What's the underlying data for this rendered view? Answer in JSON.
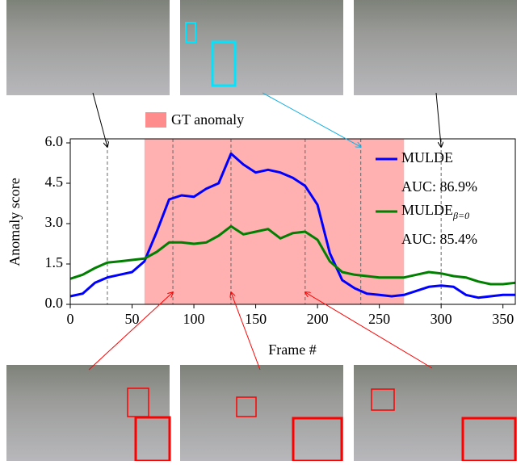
{
  "chart_data": {
    "type": "line",
    "xlabel": "Frame #",
    "ylabel": "Anomaly score",
    "xlim": [
      0,
      360
    ],
    "ylim": [
      0,
      6.15
    ],
    "xticks": [
      0,
      50,
      100,
      150,
      200,
      250,
      300,
      350
    ],
    "yticks": [
      {
        "value": 0,
        "label": "0.0"
      },
      1.5,
      {
        "value": 3,
        "label": "3.0"
      },
      4.5,
      {
        "value": 6,
        "label": "6.0"
      }
    ],
    "anomaly_span": {
      "name": "GT anomaly",
      "color": "#ff8080",
      "start": 60,
      "end": 270
    },
    "marked_frames": [
      30,
      83,
      130,
      190,
      235,
      300
    ],
    "x": [
      0,
      10,
      20,
      30,
      40,
      50,
      60,
      70,
      80,
      90,
      100,
      110,
      120,
      130,
      140,
      150,
      160,
      170,
      180,
      190,
      200,
      210,
      220,
      230,
      240,
      250,
      260,
      270,
      280,
      290,
      300,
      310,
      320,
      330,
      340,
      350,
      360
    ],
    "series": [
      {
        "name": "MULDE",
        "auc_label": "AUC: 86.9%",
        "color": "#0000ff",
        "values": [
          0.3,
          0.4,
          0.8,
          1.0,
          1.1,
          1.2,
          1.6,
          2.7,
          3.9,
          4.05,
          4.0,
          4.3,
          4.5,
          5.6,
          5.2,
          4.9,
          5.0,
          4.9,
          4.7,
          4.4,
          3.7,
          1.9,
          0.9,
          0.6,
          0.4,
          0.35,
          0.3,
          0.35,
          0.5,
          0.65,
          0.7,
          0.65,
          0.35,
          0.25,
          0.3,
          0.35,
          0.35
        ]
      },
      {
        "name": "MULDE",
        "name_sub": "β=0",
        "auc_label": "AUC: 85.4%",
        "color": "#007f00",
        "values": [
          0.95,
          1.1,
          1.35,
          1.55,
          1.6,
          1.65,
          1.7,
          1.95,
          2.3,
          2.3,
          2.25,
          2.3,
          2.55,
          2.9,
          2.6,
          2.7,
          2.8,
          2.45,
          2.65,
          2.7,
          2.4,
          1.6,
          1.2,
          1.1,
          1.05,
          1.0,
          1.0,
          1.0,
          1.1,
          1.2,
          1.15,
          1.05,
          1.0,
          0.85,
          0.75,
          0.75,
          0.8
        ]
      }
    ]
  }
}
